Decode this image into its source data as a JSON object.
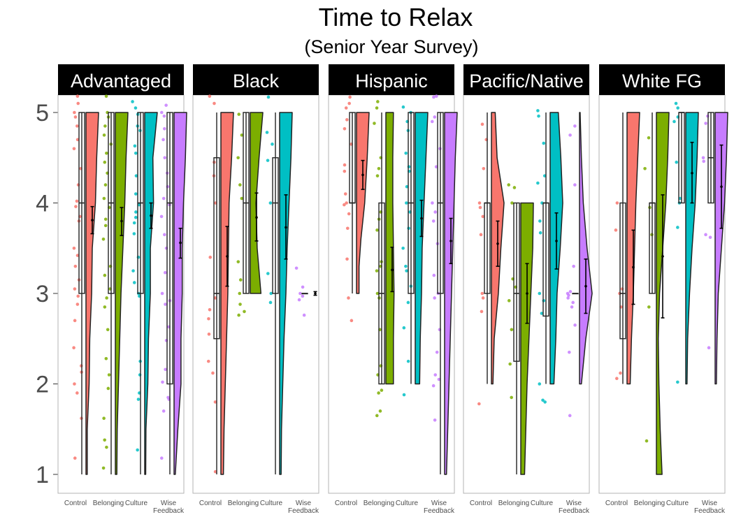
{
  "chart_data": {
    "type": "raincloud",
    "title": "Time to Relax",
    "subtitle": "(Senior Year Survey)",
    "ylim": [
      1,
      5
    ],
    "yticks": [
      1,
      2,
      3,
      4,
      5
    ],
    "conditions": [
      "Control",
      "Belonging",
      "Culture",
      "Wise Feedback"
    ],
    "condition_colors": [
      "#F8766D",
      "#7CAE00",
      "#00BFC4",
      "#C77CFF"
    ],
    "panels": [
      {
        "name": "Advantaged",
        "groups": [
          {
            "condition": "Control",
            "box": [
              1,
              3,
              4,
              5,
              5
            ],
            "mean": 3.81,
            "ci": [
              3.66,
              3.96
            ],
            "density": {
              "1": 0.1,
              "1.5": 0.1,
              "2": 0.25,
              "2.5": 0.3,
              "3": 0.45,
              "3.5": 0.5,
              "4": 0.75,
              "4.5": 0.85,
              "5": 1.0
            },
            "points": [
              5.18,
              5.1,
              5.0,
              4.95,
              4.85,
              4.7,
              4.6,
              4.38,
              4.2,
              4.02,
              3.96,
              3.85,
              3.8,
              3.5,
              3.42,
              3.3,
              3.15,
              3.05,
              2.97,
              2.88,
              2.7,
              2.4,
              2.2,
              2.13,
              2.0,
              1.9,
              1.62,
              1.18
            ]
          },
          {
            "condition": "Belonging",
            "box": [
              1,
              3,
              4,
              5,
              5
            ],
            "mean": 3.8,
            "ci": [
              3.64,
              3.95
            ],
            "density": {
              "1": 0.12,
              "1.5": 0.15,
              "2": 0.25,
              "2.5": 0.35,
              "3": 0.45,
              "3.5": 0.6,
              "4": 0.75,
              "4.5": 0.85,
              "5": 1.0
            },
            "points": [
              5.18,
              5.0,
              4.95,
              4.85,
              4.75,
              4.65,
              4.55,
              4.45,
              4.33,
              4.2,
              4.05,
              3.95,
              3.82,
              3.75,
              3.6,
              3.3,
              3.2,
              3.05,
              2.95,
              2.85,
              2.6,
              2.28,
              2.1,
              1.95,
              1.62,
              1.38,
              1.3,
              1.07
            ]
          },
          {
            "condition": "Culture",
            "box": [
              1,
              3,
              4,
              5,
              5
            ],
            "mean": 3.86,
            "ci": [
              3.72,
              4.0
            ],
            "density": {
              "1": 0.08,
              "1.5": 0.1,
              "2": 0.25,
              "2.5": 0.3,
              "3": 0.45,
              "3.5": 0.45,
              "4": 0.7,
              "4.5": 0.65,
              "5": 1.0
            },
            "points": [
              5.12,
              5.05,
              4.98,
              4.85,
              4.8,
              4.63,
              4.55,
              4.3,
              4.1,
              3.98,
              3.9,
              3.84,
              3.78,
              3.66,
              3.4,
              3.25,
              3.12,
              3.0,
              2.97,
              2.25,
              2.1,
              1.9,
              1.83,
              1.27
            ]
          },
          {
            "condition": "Wise Feedback",
            "box": [
              1,
              2,
              4,
              5,
              5
            ],
            "mean": 3.56,
            "ci": [
              3.39,
              3.72
            ],
            "density": {
              "1": 0.1,
              "1.5": 0.3,
              "2": 0.55,
              "2.5": 0.55,
              "3": 0.65,
              "3.5": 0.65,
              "4": 0.75,
              "4.5": 0.9,
              "5": 1.0
            },
            "points": [
              5.08,
              5.0,
              4.96,
              4.82,
              4.7,
              4.5,
              4.33,
              4.18,
              4.05,
              3.98,
              3.85,
              3.65,
              3.5,
              3.23,
              3.0,
              2.92,
              2.88,
              2.63,
              2.48,
              2.16,
              2.02,
              1.85,
              1.83,
              1.7,
              1.18
            ]
          }
        ]
      },
      {
        "name": "Black",
        "groups": [
          {
            "condition": "Control",
            "box": [
              1,
              2.5,
              3,
              4.5,
              5
            ],
            "mean": 3.41,
            "ci": [
              3.08,
              3.74
            ],
            "density": {
              "1": 0.2,
              "1.5": 0.25,
              "2": 0.35,
              "2.5": 0.45,
              "3": 0.55,
              "3.5": 0.6,
              "4": 0.65,
              "4.5": 0.85,
              "5": 1.0
            },
            "points": [
              5.18,
              5.1,
              4.45,
              4.3,
              4.0,
              3.4,
              2.95,
              2.82,
              2.72,
              2.55,
              2.25,
              2.12,
              1.8,
              1.03
            ]
          },
          {
            "condition": "Belonging",
            "box": [
              3,
              3,
              4,
              5,
              5
            ],
            "mean": 3.84,
            "ci": [
              3.58,
              4.11
            ],
            "density": {
              "3": 0.85,
              "3.5": 0.55,
              "4": 0.45,
              "4.5": 0.7,
              "5": 1.0
            },
            "points": [
              4.98,
              4.75,
              4.5,
              4.2,
              4.05,
              3.35,
              3.15,
              3.0,
              2.88,
              2.8,
              2.76
            ]
          },
          {
            "condition": "Culture",
            "box": [
              1,
              3,
              4,
              4.5,
              5
            ],
            "mean": 3.73,
            "ci": [
              3.38,
              4.09
            ],
            "density": {
              "1": 0.12,
              "1.5": 0.15,
              "2": 0.25,
              "2.5": 0.35,
              "3": 0.5,
              "3.5": 0.6,
              "4": 0.75,
              "4.5": 0.9,
              "5": 1.0
            },
            "points": [
              5.17,
              4.78,
              4.65,
              4.47,
              4.0,
              3.22,
              3.0,
              2.9
            ]
          },
          {
            "condition": "Wise Feedback",
            "box": [
              3,
              3,
              3,
              3,
              3
            ],
            "mean": 3.0,
            "ci": [
              2.98,
              3.02
            ],
            "density": {},
            "points": [
              3.28,
              3.07,
              3.0,
              2.97,
              2.93,
              2.76
            ]
          }
        ]
      },
      {
        "name": "Hispanic",
        "groups": [
          {
            "condition": "Control",
            "box": [
              3,
              4,
              4,
              5,
              5
            ],
            "mean": 4.31,
            "ci": [
              4.15,
              4.47
            ],
            "density": {
              "3": 0.2,
              "3.3": 0.2,
              "3.6": 0.35,
              "4": 0.65,
              "4.5": 0.85,
              "5": 1.0
            },
            "points": [
              5.17,
              5.1,
              5.05,
              4.92,
              4.82,
              4.65,
              4.42,
              4.35,
              4.1,
              4.0,
              3.98,
              3.88,
              3.72,
              3.38,
              2.95,
              2.7
            ]
          },
          {
            "condition": "Belonging",
            "box": [
              2,
              2,
              3,
              4,
              5
            ],
            "mean": 3.26,
            "ci": [
              3.02,
              3.51
            ],
            "density": {
              "2": 0.6,
              "2.5": 0.6,
              "3": 0.65,
              "3.5": 0.6,
              "4": 0.55,
              "4.5": 0.55,
              "5": 0.6
            },
            "points": [
              5.12,
              5.05,
              4.88,
              4.5,
              4.38,
              4.3,
              3.9,
              3.82,
              3.7,
              3.35,
              3.3,
              3.25,
              3.0,
              2.95,
              2.6,
              2.2,
              2.1,
              1.93,
              1.9,
              1.7,
              1.65
            ]
          },
          {
            "condition": "Culture",
            "box": [
              2,
              3,
              4,
              5,
              5
            ],
            "mean": 3.83,
            "ci": [
              3.63,
              4.03
            ],
            "density": {
              "2": 0.35,
              "2.5": 0.4,
              "3": 0.5,
              "3.5": 0.55,
              "4": 0.7,
              "4.5": 0.85,
              "5": 1.0
            },
            "points": [
              5.06,
              5.0,
              4.9,
              4.8,
              4.55,
              4.4,
              4.35,
              4.18,
              4.0,
              3.9,
              3.72,
              3.5,
              3.3,
              3.25,
              3.08,
              2.9,
              2.62,
              2.25,
              1.88
            ]
          },
          {
            "condition": "Wise Feedback",
            "box": [
              1,
              3,
              4,
              5,
              5
            ],
            "mean": 3.58,
            "ci": [
              3.33,
              3.83
            ],
            "density": {
              "1": 0.15,
              "1.5": 0.25,
              "2": 0.35,
              "2.5": 0.45,
              "3": 0.55,
              "3.5": 0.65,
              "4": 0.75,
              "4.5": 0.85,
              "5": 1.0
            },
            "points": [
              5.17,
              5.18,
              4.95,
              4.9,
              4.6,
              4.4,
              4.0,
              3.9,
              3.8,
              3.55,
              3.2,
              3.0,
              2.95,
              2.6,
              2.35,
              2.1,
              2.05,
              1.98,
              1.6
            ]
          }
        ]
      },
      {
        "name": "Pacific/Native",
        "groups": [
          {
            "condition": "Control",
            "box": [
              2,
              3,
              4,
              4,
              5
            ],
            "mean": 3.55,
            "ci": [
              3.3,
              3.8
            ],
            "density": {
              "2": 0.12,
              "2.5": 0.22,
              "3": 0.55,
              "3.5": 0.75,
              "4": 1.0,
              "4.5": 0.45,
              "5": 0.3
            },
            "points": [
              4.87,
              4.7,
              4.38,
              4.0,
              3.95,
              3.85,
              3.65,
              3.0,
              2.95,
              2.8,
              1.78
            ]
          },
          {
            "condition": "Belonging",
            "box": [
              1,
              2.25,
              3,
              4,
              4
            ],
            "mean": 3.0,
            "ci": [
              2.67,
              3.33
            ],
            "density": {
              "1": 0.3,
              "1.5": 0.4,
              "2": 0.5,
              "2.5": 0.65,
              "3": 0.8,
              "3.5": 0.95,
              "4": 1.0
            },
            "points": [
              4.2,
              4.17,
              4.0,
              3.16,
              3.07,
              2.92,
              2.6,
              2.22,
              1.85
            ]
          },
          {
            "condition": "Culture",
            "box": [
              2,
              2.75,
              4,
              4,
              5
            ],
            "mean": 3.58,
            "ci": [
              3.27,
              3.89
            ],
            "density": {
              "2": 0.3,
              "2.5": 0.45,
              "3": 0.55,
              "3.5": 0.8,
              "4": 1.0,
              "4.5": 0.85,
              "5": 0.65
            },
            "points": [
              5.02,
              4.96,
              4.66,
              4.3,
              4.22,
              4.0,
              3.8,
              3.67,
              3.0,
              2.92,
              2.78,
              2.0,
              1.82,
              1.8
            ]
          },
          {
            "condition": "Wise Feedback",
            "box": [
              3,
              3,
              3,
              3,
              3
            ],
            "mean": 3.08,
            "ci": [
              2.78,
              3.38
            ],
            "density": {
              "2": 0.15,
              "2.5": 0.5,
              "3": 1.0,
              "3.5": 0.6,
              "4": 0.3,
              "4.5": 0.15,
              "5": 0.05
            },
            "points": [
              4.85,
              4.75,
              4.2,
              3.3,
              3.02,
              3.0,
              2.98,
              2.95,
              2.9,
              2.85,
              2.65,
              2.35,
              1.65
            ]
          }
        ]
      },
      {
        "name": "White FG",
        "groups": [
          {
            "condition": "Control",
            "box": [
              2,
              2.5,
              3,
              4,
              5
            ],
            "mean": 3.29,
            "ci": [
              2.88,
              3.7
            ],
            "density": {
              "2": 0.25,
              "2.5": 0.35,
              "3": 0.5,
              "3.5": 0.6,
              "4": 0.7,
              "4.5": 0.85,
              "5": 1.0
            },
            "points": [
              4.0,
              3.7,
              3.05,
              3.0,
              2.85,
              2.12,
              2.06
            ]
          },
          {
            "condition": "Belonging",
            "box": [
              3,
              3,
              4,
              4,
              5
            ],
            "mean": 3.41,
            "ci": [
              2.73,
              4.09
            ],
            "density": {
              "1": 0.45,
              "1.5": 0.3,
              "2": 0.2,
              "2.5": 0.15,
              "3": 0.25,
              "3.5": 0.5,
              "4": 0.75,
              "4.5": 0.9,
              "5": 1.0
            },
            "points": [
              4.72,
              4.38,
              3.95,
              3.65,
              2.85,
              1.37
            ]
          },
          {
            "condition": "Culture",
            "box": [
              4,
              4,
              5,
              5,
              5
            ],
            "mean": 4.33,
            "ci": [
              4.0,
              4.67
            ],
            "density": {
              "2": 0.1,
              "2.5": 0.15,
              "3": 0.3,
              "3.5": 0.5,
              "4": 0.75,
              "4.5": 0.9,
              "5": 1.0
            },
            "points": [
              5.1,
              5.05,
              4.95,
              4.9,
              4.45,
              4.05,
              4.0,
              3.73,
              2.02
            ]
          },
          {
            "condition": "Wise Feedback",
            "box": [
              4,
              4,
              4.5,
              5,
              5
            ],
            "mean": 4.18,
            "ci": [
              3.72,
              4.64
            ],
            "density": {
              "2": 0.1,
              "2.5": 0.15,
              "3": 0.25,
              "3.5": 0.5,
              "4": 0.75,
              "4.5": 0.9,
              "5": 1.0
            },
            "points": [
              4.96,
              4.88,
              4.5,
              4.46,
              3.65,
              3.62,
              2.4
            ]
          }
        ]
      }
    ]
  }
}
